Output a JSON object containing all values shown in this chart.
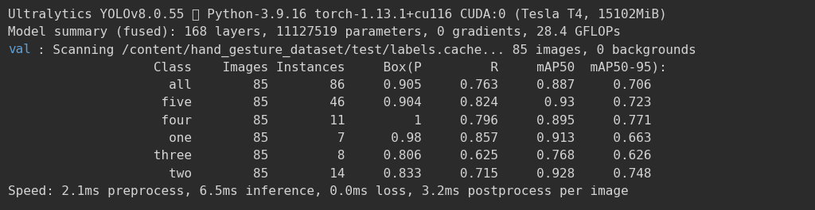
{
  "bg_color": "#2b2b2b",
  "text_color": "#d4d4d4",
  "val_color": "#5f9fd4",
  "font_family": "monospace",
  "font_size": 11.5,
  "figsize": [
    10.24,
    2.65
  ],
  "dpi": 100,
  "lines": [
    {
      "parts": [
        {
          "text": "Ultralytics YOLOv8.0.55 🚀 Python-3.9.16 torch-1.13.1+cu116 CUDA:0 (Tesla T4, 15102MiB)",
          "color": "#d4d4d4"
        }
      ]
    },
    {
      "parts": [
        {
          "text": "Model summary (fused): 168 layers, 11127519 parameters, 0 gradients, 28.4 GFLOPs",
          "color": "#d4d4d4"
        }
      ]
    },
    {
      "parts": [
        {
          "text": "val",
          "color": "#5f9fd4"
        },
        {
          "text": ": Scanning /content/hand_gesture_dataset/test/labels.cache... 85 images, 0 backgrounds",
          "color": "#d4d4d4"
        }
      ]
    },
    {
      "parts": [
        {
          "text": "                   Class    Images Instances     Box(P         R     mAP50  mAP50-95):",
          "color": "#d4d4d4"
        }
      ]
    },
    {
      "parts": [
        {
          "text": "                     all        85        86     0.905     0.763     0.887     0.706",
          "color": "#d4d4d4"
        }
      ]
    },
    {
      "parts": [
        {
          "text": "                    five        85        46     0.904     0.824      0.93     0.723",
          "color": "#d4d4d4"
        }
      ]
    },
    {
      "parts": [
        {
          "text": "                    four        85        11         1     0.796     0.895     0.771",
          "color": "#d4d4d4"
        }
      ]
    },
    {
      "parts": [
        {
          "text": "                     one        85         7      0.98     0.857     0.913     0.663",
          "color": "#d4d4d4"
        }
      ]
    },
    {
      "parts": [
        {
          "text": "                   three        85         8     0.806     0.625     0.768     0.626",
          "color": "#d4d4d4"
        }
      ]
    },
    {
      "parts": [
        {
          "text": "                     two        85        14     0.833     0.715     0.928     0.748",
          "color": "#d4d4d4"
        }
      ]
    },
    {
      "parts": [
        {
          "text": "Speed: 2.1ms preprocess, 6.5ms inference, 0.0ms loss, 3.2ms postprocess per image",
          "color": "#d4d4d4"
        }
      ]
    }
  ]
}
